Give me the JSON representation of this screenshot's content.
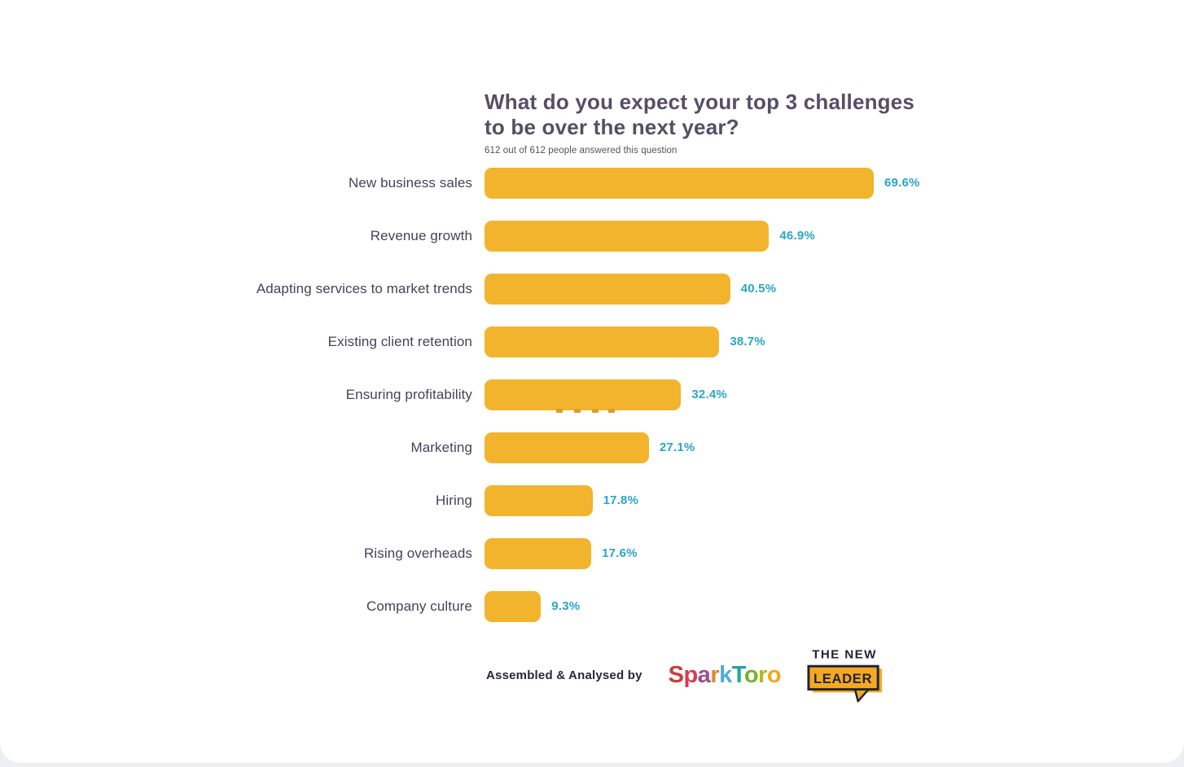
{
  "page": {
    "background": "#edeff2",
    "card_background": "#ffffff"
  },
  "chart_data": {
    "type": "bar",
    "orientation": "horizontal",
    "title": "What do you expect your top 3 challenges to be over the next year?",
    "title_lines": [
      "What do you expect your top 3 challenges",
      "to be over the next year?"
    ],
    "subtitle": "612 out of 612 people answered this question",
    "categories": [
      "New business sales",
      "Revenue growth",
      "Adapting services to market trends",
      "Existing client retention",
      "Ensuring profitability",
      "Marketing",
      "Hiring",
      "Rising overheads",
      "Company culture"
    ],
    "values": [
      69.6,
      46.9,
      40.5,
      38.7,
      32.4,
      27.1,
      17.8,
      17.6,
      9.3
    ],
    "value_labels": [
      "69.6%",
      "46.9%",
      "40.5%",
      "38.7%",
      "32.4%",
      "27.1%",
      "17.8%",
      "17.6%",
      "9.3%"
    ],
    "unit": "%",
    "xlim": [
      0,
      75
    ],
    "grid": false,
    "legend": false,
    "bar_color": "#F2B42D",
    "value_label_color": "#2BA5C8",
    "category_label_color": "#47415A",
    "title_color": "#574E66"
  },
  "footer": {
    "credit_text": "Assembled & Analysed by",
    "sparktoro_logo": {
      "text": "SparkToro",
      "letters": [
        {
          "char": "S",
          "color": "#C2403B"
        },
        {
          "char": "p",
          "color": "#D93A53"
        },
        {
          "char": "a",
          "color": "#9C4E8B"
        },
        {
          "char": "r",
          "color": "#E8842C"
        },
        {
          "char": "k",
          "color": "#4FABD8"
        },
        {
          "char": "T",
          "color": "#23A69A"
        },
        {
          "char": "o",
          "color": "#6FB52C"
        },
        {
          "char": "r",
          "color": "#B2B71E"
        },
        {
          "char": "o",
          "color": "#F0A81E"
        }
      ]
    },
    "newleader_logo": {
      "line1": "THE NEW",
      "line2": "LEADER",
      "accent_color": "#F6A823",
      "outline_color": "#1D2533"
    }
  }
}
